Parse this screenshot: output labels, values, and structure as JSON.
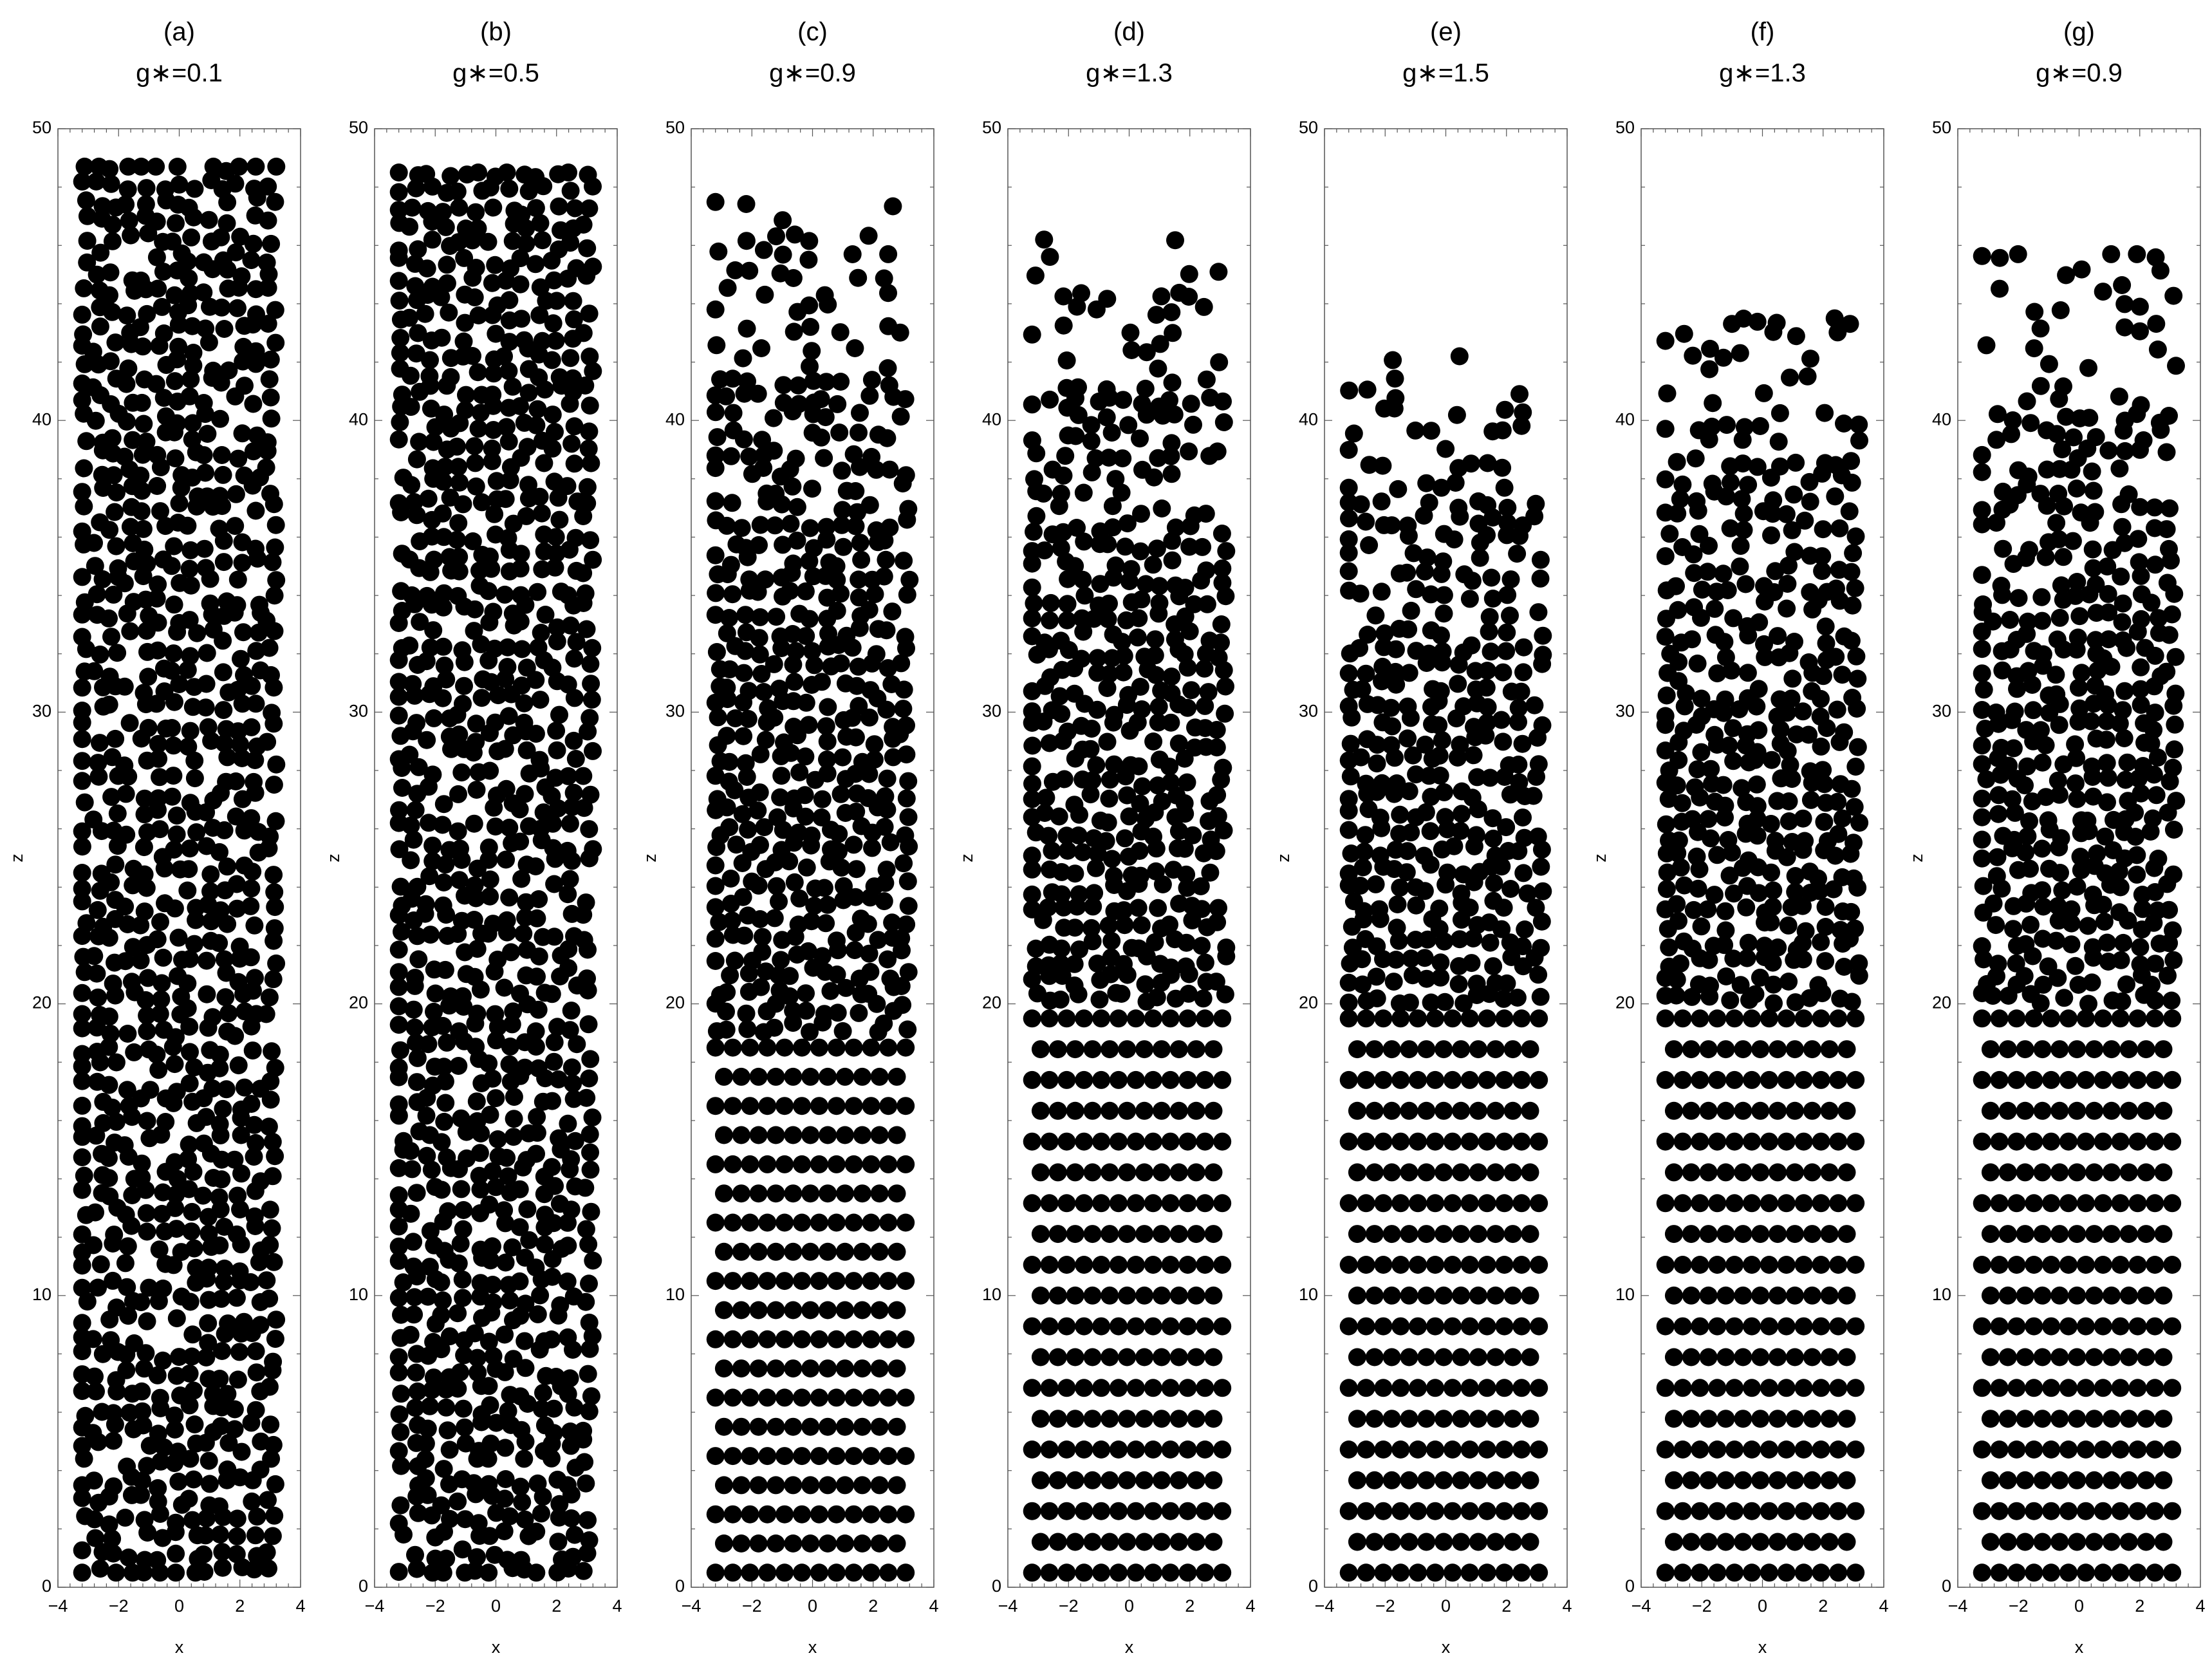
{
  "figure": {
    "panels": [
      {
        "label": "(a)",
        "title": "g∗=0.1"
      },
      {
        "label": "(b)",
        "title": "g∗=0.5"
      },
      {
        "label": "(c)",
        "title": "g∗=0.9"
      },
      {
        "label": "(d)",
        "title": "g∗=1.3"
      },
      {
        "label": "(e)",
        "title": "g∗=1.5"
      },
      {
        "label": "(f)",
        "title": "g∗=1.3"
      },
      {
        "label": "(g)",
        "title": "g∗=0.9"
      }
    ]
  },
  "chart_data": [
    {
      "type": "scatter",
      "label": "(a)",
      "title": "g∗=0.1",
      "xlabel": "x",
      "ylabel": "z",
      "xlim": [
        -4,
        4
      ],
      "ylim": [
        0,
        50
      ],
      "xticks": [
        -4,
        -2,
        0,
        2,
        4
      ],
      "yticks": [
        0,
        10,
        20,
        30,
        40,
        50
      ],
      "particles": {
        "x_range": [
          -3.2,
          3.2
        ],
        "z_min": 0.5,
        "crystal_top": null,
        "fluid_top": 48.7,
        "seed": 11
      },
      "marker": "filled circle",
      "color": "#000000",
      "grid": false
    },
    {
      "type": "scatter",
      "label": "(b)",
      "title": "g∗=0.5",
      "xlabel": "x",
      "ylabel": "z",
      "xlim": [
        -4,
        4
      ],
      "ylim": [
        0,
        50
      ],
      "xticks": [
        -4,
        -2,
        0,
        2,
        4
      ],
      "yticks": [
        0,
        10,
        20,
        30,
        40,
        50
      ],
      "particles": {
        "x_range": [
          -3.2,
          3.2
        ],
        "z_min": 0.5,
        "crystal_top": null,
        "fluid_top": 48.5,
        "seed": 23
      },
      "marker": "filled circle",
      "color": "#000000",
      "grid": false
    },
    {
      "type": "scatter",
      "label": "(c)",
      "title": "g∗=0.9",
      "xlabel": "x",
      "ylabel": "z",
      "xlim": [
        -4,
        4
      ],
      "ylim": [
        0,
        50
      ],
      "xticks": [
        -4,
        -2,
        0,
        2,
        4
      ],
      "yticks": [
        0,
        10,
        20,
        30,
        40,
        50
      ],
      "particles": {
        "x_range": [
          -3.2,
          3.2
        ],
        "z_min": 0.5,
        "crystal_top": 18.5,
        "fluid_top": 47.5,
        "seed": 37
      },
      "marker": "filled circle",
      "color": "#000000",
      "grid": false
    },
    {
      "type": "scatter",
      "label": "(d)",
      "title": "g∗=1.3",
      "xlabel": "x",
      "ylabel": "z",
      "xlim": [
        -4,
        4
      ],
      "ylim": [
        0,
        50
      ],
      "xticks": [
        -4,
        -2,
        0,
        2,
        4
      ],
      "yticks": [
        0,
        10,
        20,
        30,
        40,
        50
      ],
      "particles": {
        "x_range": [
          -3.2,
          3.2
        ],
        "z_min": 0.5,
        "crystal_top": 19.5,
        "fluid_top": 46.2,
        "seed": 41
      },
      "marker": "filled circle",
      "color": "#000000",
      "grid": false
    },
    {
      "type": "scatter",
      "label": "(e)",
      "title": "g∗=1.5",
      "xlabel": "x",
      "ylabel": "z",
      "xlim": [
        -4,
        4
      ],
      "ylim": [
        0,
        50
      ],
      "xticks": [
        -4,
        -2,
        0,
        2,
        4
      ],
      "yticks": [
        0,
        10,
        20,
        30,
        40,
        50
      ],
      "particles": {
        "x_range": [
          -3.2,
          3.2
        ],
        "z_min": 0.5,
        "crystal_top": 19.5,
        "fluid_top": 42.2,
        "seed": 53
      },
      "marker": "filled circle",
      "color": "#000000",
      "grid": false
    },
    {
      "type": "scatter",
      "label": "(f)",
      "title": "g∗=1.3",
      "xlabel": "x",
      "ylabel": "z",
      "xlim": [
        -4,
        4
      ],
      "ylim": [
        0,
        50
      ],
      "xticks": [
        -4,
        -2,
        0,
        2,
        4
      ],
      "yticks": [
        0,
        10,
        20,
        30,
        40,
        50
      ],
      "particles": {
        "x_range": [
          -3.2,
          3.2
        ],
        "z_min": 0.5,
        "crystal_top": 19.5,
        "fluid_top": 43.5,
        "seed": 67
      },
      "marker": "filled circle",
      "color": "#000000",
      "grid": false
    },
    {
      "type": "scatter",
      "label": "(g)",
      "title": "g∗=0.9",
      "xlabel": "x",
      "ylabel": "z",
      "xlim": [
        -4,
        4
      ],
      "ylim": [
        0,
        50
      ],
      "xticks": [
        -4,
        -2,
        0,
        2,
        4
      ],
      "yticks": [
        0,
        10,
        20,
        30,
        40,
        50
      ],
      "particles": {
        "x_range": [
          -3.2,
          3.2
        ],
        "z_min": 0.5,
        "crystal_top": 19.5,
        "fluid_top": 45.7,
        "seed": 79
      },
      "marker": "filled circle",
      "color": "#000000",
      "grid": false
    }
  ]
}
